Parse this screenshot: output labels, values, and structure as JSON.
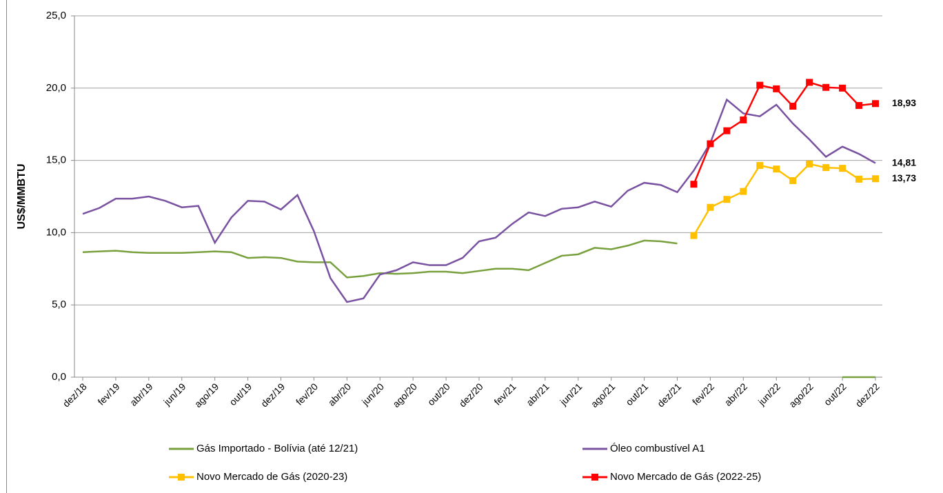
{
  "chart_data": {
    "type": "line",
    "y_label": "US$/MMBTU",
    "categories": [
      "dez/18",
      null,
      "fev/19",
      null,
      "abr/19",
      null,
      "jun/19",
      null,
      "ago/19",
      null,
      "out/19",
      null,
      "dez/19",
      null,
      "fev/20",
      null,
      "abr/20",
      null,
      "jun/20",
      null,
      "ago/20",
      null,
      "out/20",
      null,
      "dez/20",
      null,
      "fev/21",
      null,
      "abr/21",
      null,
      "jun/21",
      null,
      "ago/21",
      null,
      "out/21",
      null,
      "dez/21",
      null,
      "fev/22",
      null,
      "abr/22",
      null,
      "jun/22",
      null,
      "ago/22",
      null,
      "out/22",
      null,
      "dez/22"
    ],
    "ylim": [
      0,
      25
    ],
    "yticks": [
      {
        "value": 0,
        "label": "0,0"
      },
      {
        "value": 5,
        "label": "5,0"
      },
      {
        "value": 10,
        "label": "10,0"
      },
      {
        "value": 15,
        "label": "15,0"
      },
      {
        "value": 20,
        "label": "20,0"
      },
      {
        "value": 25,
        "label": "25,0"
      }
    ],
    "grid": true,
    "legend": "bottom",
    "series": [
      {
        "name": "Gás Importado - Bolívia (até 12/21)",
        "color": "#77a03c",
        "marker": false,
        "values": [
          8.65,
          8.7,
          8.75,
          8.65,
          8.6,
          8.6,
          8.6,
          8.65,
          8.7,
          8.65,
          8.25,
          8.3,
          8.25,
          8.0,
          7.95,
          7.95,
          6.9,
          7.0,
          7.2,
          7.15,
          7.2,
          7.3,
          7.3,
          7.2,
          7.35,
          7.5,
          7.5,
          7.4,
          7.9,
          8.4,
          8.5,
          8.95,
          8.85,
          9.1,
          9.45,
          9.4,
          9.25,
          null,
          null,
          null,
          null,
          null,
          null,
          null,
          null,
          null,
          0,
          0,
          0
        ]
      },
      {
        "name": "Óleo combustível A1",
        "color": "#7851a0",
        "marker": false,
        "values": [
          11.3,
          11.7,
          12.35,
          12.35,
          12.5,
          12.2,
          11.75,
          11.85,
          9.3,
          11.05,
          12.2,
          12.15,
          11.6,
          12.6,
          10.1,
          6.85,
          5.2,
          5.45,
          7.1,
          7.4,
          7.95,
          7.75,
          7.75,
          8.25,
          9.4,
          9.65,
          10.6,
          11.4,
          11.15,
          11.65,
          11.75,
          12.15,
          11.8,
          12.9,
          13.45,
          13.3,
          12.8,
          14.3,
          16.2,
          19.2,
          18.25,
          18.05,
          18.85,
          17.55,
          16.45,
          15.25,
          15.95,
          15.45,
          14.81
        ],
        "value_labels": [
          null,
          null,
          null,
          null,
          null,
          null,
          null,
          null,
          null,
          null,
          null,
          null,
          null,
          null,
          null,
          null,
          null,
          null,
          null,
          null,
          null,
          null,
          null,
          null,
          null,
          null,
          null,
          null,
          null,
          null,
          null,
          null,
          null,
          null,
          null,
          null,
          null,
          null,
          null,
          null,
          null,
          null,
          null,
          null,
          null,
          null,
          null,
          null,
          "14,81"
        ]
      },
      {
        "name": "Novo Mercado de Gás (2020-23)",
        "color": "#ffc000",
        "marker": true,
        "values": [
          null,
          null,
          null,
          null,
          null,
          null,
          null,
          null,
          null,
          null,
          null,
          null,
          null,
          null,
          null,
          null,
          null,
          null,
          null,
          null,
          null,
          null,
          null,
          null,
          null,
          null,
          null,
          null,
          null,
          null,
          null,
          null,
          null,
          null,
          null,
          null,
          null,
          9.8,
          11.75,
          12.3,
          12.85,
          14.65,
          14.4,
          13.6,
          14.75,
          14.5,
          14.45,
          13.7,
          13.73
        ],
        "value_labels": [
          null,
          null,
          null,
          null,
          null,
          null,
          null,
          null,
          null,
          null,
          null,
          null,
          null,
          null,
          null,
          null,
          null,
          null,
          null,
          null,
          null,
          null,
          null,
          null,
          null,
          null,
          null,
          null,
          null,
          null,
          null,
          null,
          null,
          null,
          null,
          null,
          null,
          null,
          null,
          null,
          null,
          null,
          null,
          null,
          null,
          null,
          null,
          null,
          "13,73"
        ]
      },
      {
        "name": "Novo Mercado de Gás (2022-25)",
        "color": "#ff0000",
        "marker": true,
        "values": [
          null,
          null,
          null,
          null,
          null,
          null,
          null,
          null,
          null,
          null,
          null,
          null,
          null,
          null,
          null,
          null,
          null,
          null,
          null,
          null,
          null,
          null,
          null,
          null,
          null,
          null,
          null,
          null,
          null,
          null,
          null,
          null,
          null,
          null,
          null,
          null,
          null,
          13.35,
          16.15,
          17.05,
          17.8,
          20.2,
          19.95,
          18.75,
          20.4,
          20.05,
          20.0,
          18.8,
          18.93
        ],
        "value_labels": [
          null,
          null,
          null,
          null,
          null,
          null,
          null,
          null,
          null,
          null,
          null,
          null,
          null,
          null,
          null,
          null,
          null,
          null,
          null,
          null,
          null,
          null,
          null,
          null,
          null,
          null,
          null,
          null,
          null,
          null,
          null,
          null,
          null,
          null,
          null,
          null,
          null,
          null,
          null,
          null,
          null,
          null,
          null,
          null,
          null,
          null,
          null,
          null,
          "18,93"
        ]
      }
    ]
  }
}
